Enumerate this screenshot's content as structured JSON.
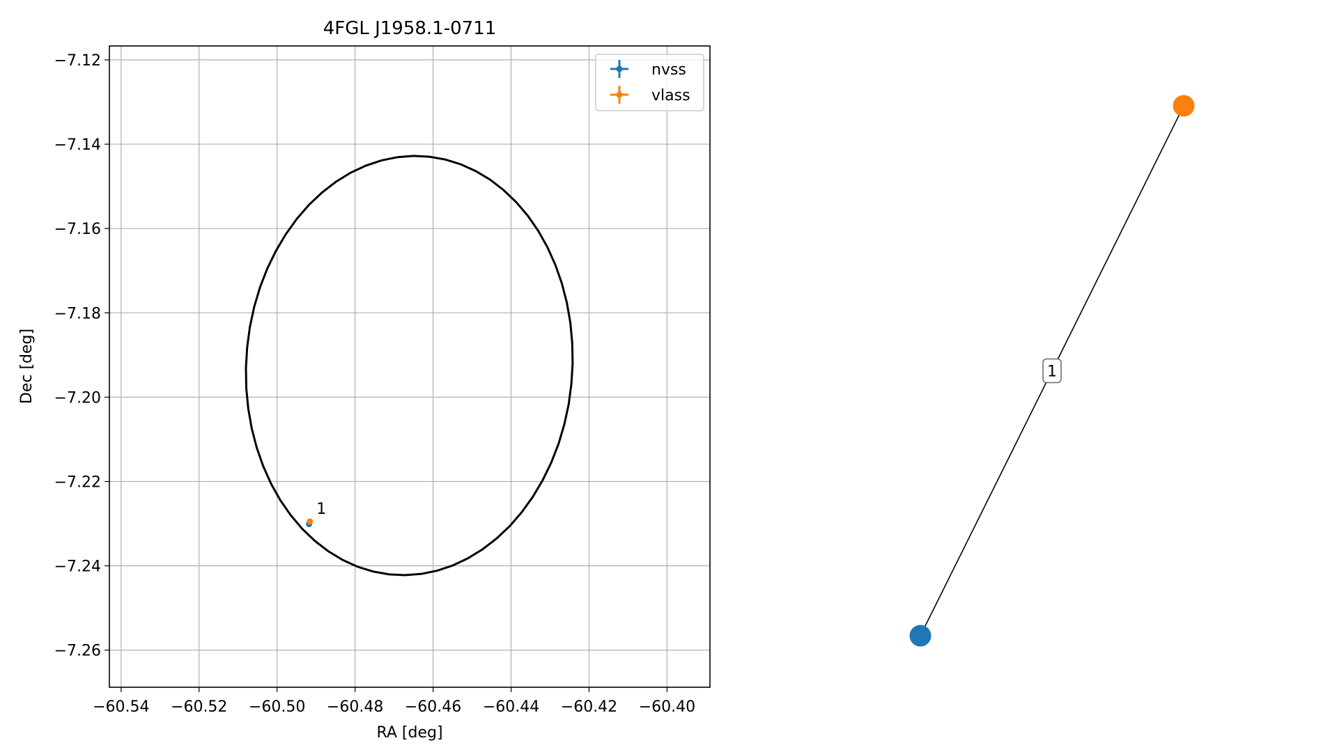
{
  "chart_data": [
    {
      "type": "scatter",
      "title": "4FGL J1958.1-0711",
      "xlabel": "RA [deg]",
      "ylabel": "Dec [deg]",
      "xlim": [
        -60.543,
        -60.389
      ],
      "ylim": [
        -7.2688,
        -7.1167
      ],
      "xticks": [
        -60.54,
        -60.52,
        -60.5,
        -60.48,
        -60.46,
        -60.44,
        -60.42,
        -60.4
      ],
      "xtick_labels": [
        "−60.54",
        "−60.52",
        "−60.50",
        "−60.48",
        "−60.46",
        "−60.44",
        "−60.42",
        "−60.40"
      ],
      "yticks": [
        -7.12,
        -7.14,
        -7.16,
        -7.18,
        -7.2,
        -7.22,
        -7.24,
        -7.26
      ],
      "ytick_labels": [
        "−7.12",
        "−7.14",
        "−7.16",
        "−7.18",
        "−7.20",
        "−7.22",
        "−7.24",
        "−7.26"
      ],
      "grid": true,
      "legend_position": "top-right",
      "series": [
        {
          "name": "nvss",
          "color": "#1f77b4",
          "points": [
            {
              "x": -60.4918,
              "y": -7.2301
            }
          ]
        },
        {
          "name": "vlass",
          "color": "#ff7f0e",
          "points": [
            {
              "x": -60.4916,
              "y": -7.2295
            }
          ]
        }
      ],
      "ellipse": {
        "center": [
          -60.4661,
          -7.1925
        ],
        "semi_axis_ra": 0.0418,
        "semi_axis_dec": 0.0498,
        "angle_deg": -6,
        "color": "#000000"
      },
      "annotations": [
        {
          "text": "1",
          "x": -60.4899,
          "y": -7.2277
        }
      ]
    },
    {
      "type": "graph",
      "nodes": [
        {
          "id": "nvss",
          "color": "#1f77b4",
          "x": 0.15,
          "y": 0.07
        },
        {
          "id": "vlass",
          "color": "#ff7f0e",
          "x": 0.85,
          "y": 0.93
        }
      ],
      "edges": [
        {
          "source": "nvss",
          "target": "vlass",
          "label": "1"
        }
      ]
    }
  ]
}
